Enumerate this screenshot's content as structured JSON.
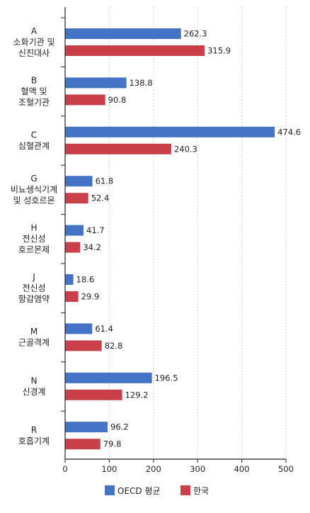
{
  "chart_data": {
    "type": "bar",
    "orientation": "horizontal",
    "categories": [
      [
        "A",
        "소화기관 및",
        "신진대사"
      ],
      [
        "B",
        "혈액 및",
        "조혈기관"
      ],
      [
        "C",
        "심혈관계"
      ],
      [
        "G",
        "비뇨생식기계",
        "및 성호르몬"
      ],
      [
        "H",
        "전신성",
        "호르몬제"
      ],
      [
        "J",
        "전신성",
        "항감염약"
      ],
      [
        "M",
        "근골격계"
      ],
      [
        "N",
        "신경계"
      ],
      [
        "R",
        "호흡기계"
      ]
    ],
    "series": [
      {
        "name": "OECD 평균",
        "color": "#4472c4",
        "values": [
          262.3,
          138.8,
          474.6,
          61.8,
          41.7,
          18.6,
          61.4,
          196.5,
          96.2
        ]
      },
      {
        "name": "한국",
        "color": "#c9404a",
        "values": [
          315.9,
          90.8,
          240.3,
          52.4,
          34.2,
          29.9,
          82.8,
          129.2,
          79.8
        ]
      }
    ],
    "value_labels": [
      [
        "262.3",
        "315.9"
      ],
      [
        "138.8",
        "90.8"
      ],
      [
        "474.6",
        "240.3"
      ],
      [
        "61.8",
        "52.4"
      ],
      [
        "41.7",
        "34.2"
      ],
      [
        "18.6",
        "29.9"
      ],
      [
        "61.4",
        "82.8"
      ],
      [
        "196.5",
        "129.2"
      ],
      [
        "96.2",
        "79.8"
      ]
    ],
    "xlim": [
      0,
      500
    ],
    "xticks": [
      0,
      100,
      200,
      300,
      400,
      500
    ],
    "xtick_labels": [
      "0",
      "100",
      "200",
      "300",
      "400",
      "500"
    ],
    "grid": "vertical dotted",
    "legend_position": "bottom-center",
    "title": "",
    "xlabel": "",
    "ylabel": ""
  }
}
